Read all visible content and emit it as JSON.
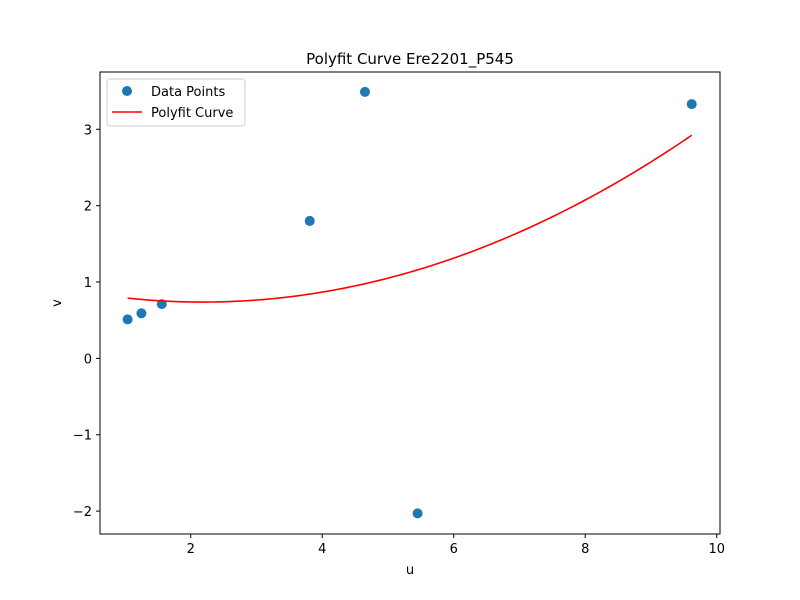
{
  "chart_data": {
    "type": "scatter",
    "title": "Polyfit Curve Ere2201_P545",
    "xlabel": "u",
    "ylabel": "v",
    "xlim": [
      0.62,
      10.05
    ],
    "ylim": [
      -2.3,
      3.75
    ],
    "xticks": [
      2,
      4,
      6,
      8,
      10
    ],
    "yticks": [
      -2,
      -1,
      0,
      1,
      2,
      3
    ],
    "grid": false,
    "legend_position": "top-left",
    "series": [
      {
        "name": "Data Points",
        "kind": "scatter",
        "color": "#1f77b4",
        "points": [
          {
            "x": 1.04,
            "y": 0.51
          },
          {
            "x": 1.25,
            "y": 0.59
          },
          {
            "x": 1.56,
            "y": 0.71
          },
          {
            "x": 3.81,
            "y": 1.8
          },
          {
            "x": 4.65,
            "y": 3.49
          },
          {
            "x": 5.45,
            "y": -2.03
          },
          {
            "x": 9.62,
            "y": 3.33
          }
        ]
      },
      {
        "name": "Polyfit Curve",
        "kind": "line",
        "color": "#ff0000",
        "x_range": [
          1.04,
          9.62
        ],
        "coefficients": {
          "a": 0.0395,
          "b": -0.1725,
          "c": 0.9255
        }
      }
    ]
  }
}
